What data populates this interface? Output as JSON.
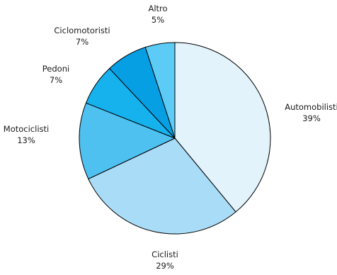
{
  "chart_data": {
    "type": "pie",
    "title": "",
    "start_angle_deg": 0,
    "direction": "clockwise",
    "slices": [
      {
        "label": "Automobilisti",
        "value": 39,
        "value_label": "39%",
        "color": "#e2f3fc"
      },
      {
        "label": "Ciclisti",
        "value": 29,
        "value_label": "29%",
        "color": "#a9dcf7"
      },
      {
        "label": "Motociclisti",
        "value": 13,
        "value_label": "13%",
        "color": "#4fc1f1"
      },
      {
        "label": "Pedoni",
        "value": 7,
        "value_label": "7%",
        "color": "#15b2ee"
      },
      {
        "label": "Ciclomotoristi",
        "value": 7,
        "value_label": "7%",
        "color": "#079fe4"
      },
      {
        "label": "Altro",
        "value": 5,
        "value_label": "5%",
        "color": "#5cccf6"
      }
    ]
  }
}
